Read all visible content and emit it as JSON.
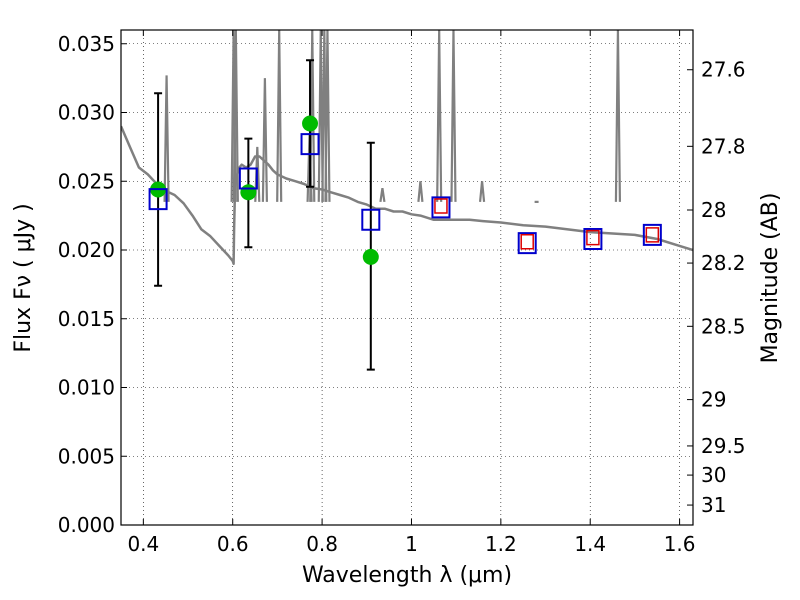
{
  "chart_data": {
    "type": "scatter",
    "xlabel": "Wavelength  λ (μm)",
    "ylabel": "Flux  Fν  ( μJy )",
    "y2label": "Magnitude (AB)",
    "xlim": [
      0.35,
      1.63
    ],
    "ylim": [
      0.0,
      0.036
    ],
    "grid": true,
    "x_ticks": [
      0.4,
      0.6,
      0.8,
      1.0,
      1.2,
      1.4,
      1.6
    ],
    "x_tick_labels": [
      "0.4",
      "0.6",
      "0.8",
      "1",
      "1.2",
      "1.4",
      "1.6"
    ],
    "y_ticks": [
      0.0,
      0.005,
      0.01,
      0.015,
      0.02,
      0.025,
      0.03,
      0.035
    ],
    "y_tick_labels": [
      "0.000",
      "0.005",
      "0.010",
      "0.015",
      "0.020",
      "0.025",
      "0.030",
      "0.035"
    ],
    "y2_ticks": [
      {
        "label": "27.6",
        "flux": 0.03311
      },
      {
        "label": "27.8",
        "flux": 0.02754
      },
      {
        "label": "28",
        "flux": 0.02291
      },
      {
        "label": "28.2",
        "flux": 0.01905
      },
      {
        "label": "28.5",
        "flux": 0.01445
      },
      {
        "label": "29",
        "flux": 0.00912
      },
      {
        "label": "29.5",
        "flux": 0.00575
      },
      {
        "label": "30",
        "flux": 0.00363
      },
      {
        "label": "31",
        "flux": 0.00145
      }
    ],
    "series": [
      {
        "marker": "line",
        "color": "#808080",
        "x": [
          0.35,
          0.37,
          0.39,
          0.41,
          0.43,
          0.45,
          0.47,
          0.49,
          0.51,
          0.53,
          0.55,
          0.57,
          0.59,
          0.6,
          0.602,
          0.603,
          0.605,
          0.61,
          0.615,
          0.62,
          0.63,
          0.64,
          0.65,
          0.66,
          0.67,
          0.68,
          0.69,
          0.7,
          0.72,
          0.74,
          0.76,
          0.78,
          0.8,
          0.82,
          0.84,
          0.86,
          0.88,
          0.9,
          0.92,
          0.94,
          0.96,
          0.98,
          1.0,
          1.02,
          1.05,
          1.08,
          1.1,
          1.13,
          1.16,
          1.2,
          1.25,
          1.3,
          1.35,
          1.4,
          1.45,
          1.5,
          1.55,
          1.6,
          1.63
        ],
        "y": [
          0.029,
          0.0275,
          0.026,
          0.0255,
          0.0248,
          0.0243,
          0.024,
          0.0234,
          0.0225,
          0.0215,
          0.021,
          0.0203,
          0.0196,
          0.0192,
          0.019,
          0.0215,
          0.0245,
          0.0255,
          0.026,
          0.0262,
          0.026,
          0.0262,
          0.0268,
          0.0268,
          0.0265,
          0.0262,
          0.0258,
          0.0255,
          0.0252,
          0.025,
          0.0248,
          0.0245,
          0.0244,
          0.0242,
          0.024,
          0.0238,
          0.0235,
          0.0233,
          0.023,
          0.023,
          0.0228,
          0.0228,
          0.0226,
          0.0225,
          0.0222,
          0.0222,
          0.0222,
          0.0222,
          0.0221,
          0.022,
          0.0218,
          0.0217,
          0.0215,
          0.0213,
          0.0212,
          0.0211,
          0.0208,
          0.0203,
          0.02
        ]
      },
      {
        "marker": "line-spikes",
        "color": "#808080",
        "x": [
          0.452,
          0.602,
          0.607,
          0.655,
          0.672,
          0.704,
          0.772,
          0.778,
          0.797,
          0.805,
          0.812,
          0.935,
          1.02,
          1.062,
          1.094,
          1.158,
          1.28,
          1.462
        ],
        "y": [
          0.0327,
          0.036,
          0.036,
          0.0275,
          0.0325,
          0.036,
          0.0285,
          0.036,
          0.036,
          0.036,
          0.036,
          0.0245,
          0.025,
          0.036,
          0.036,
          0.025,
          0.0235,
          0.036
        ]
      },
      {
        "marker": "errorbar",
        "color": "#000000",
        "x": [
          0.433,
          0.635,
          0.773,
          0.909
        ],
        "low": [
          0.0174,
          0.0202,
          0.0246,
          0.0113
        ],
        "high": [
          0.0314,
          0.0281,
          0.0338,
          0.0278
        ]
      },
      {
        "marker": "circle",
        "color": "#00bb00",
        "x": [
          0.433,
          0.635,
          0.773,
          0.909
        ],
        "y": [
          0.0244,
          0.0242,
          0.0292,
          0.0195
        ]
      },
      {
        "marker": "square",
        "color": "#0000cc",
        "x": [
          0.433,
          0.635,
          0.773,
          0.909,
          1.066,
          1.259,
          1.406,
          1.539
        ],
        "y": [
          0.0237,
          0.0252,
          0.0277,
          0.0222,
          0.0231,
          0.0205,
          0.0208,
          0.0211
        ]
      },
      {
        "marker": "square-small",
        "color": "#dd0000",
        "x": [
          1.066,
          1.259,
          1.406,
          1.539
        ],
        "y": [
          0.0232,
          0.0206,
          0.0209,
          0.0211
        ]
      }
    ]
  }
}
